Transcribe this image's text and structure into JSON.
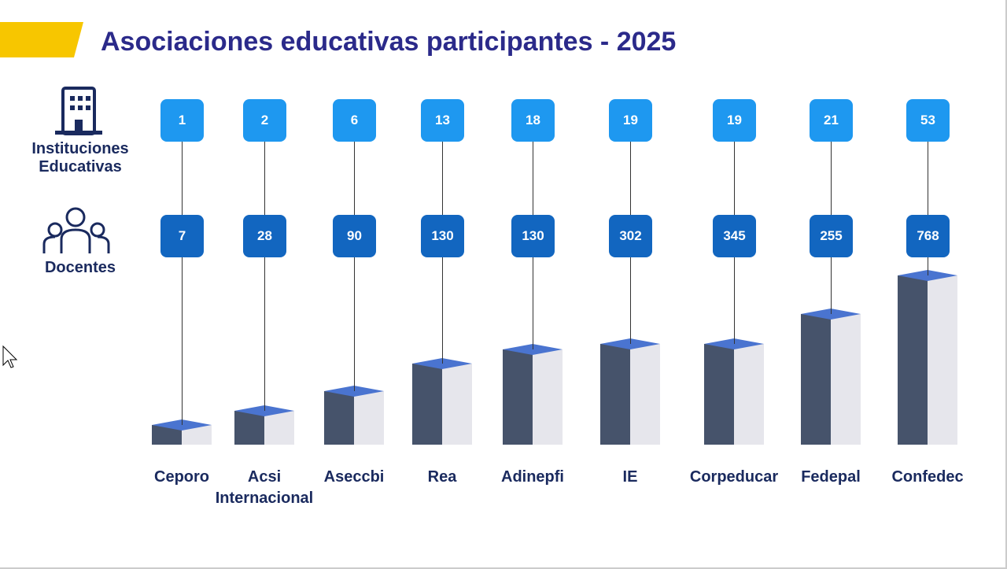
{
  "header": {
    "title": "Asociaciones educativas participantes - 2025"
  },
  "row_labels": {
    "instituciones": "Instituciones Educativas",
    "docentes": "Docentes"
  },
  "associations": [
    {
      "name": "Ceporo",
      "instituciones": 1,
      "docentes": 7
    },
    {
      "name": "Acsi Internacional",
      "instituciones": 2,
      "docentes": 28
    },
    {
      "name": "Aseccbi",
      "instituciones": 6,
      "docentes": 90
    },
    {
      "name": "Rea",
      "instituciones": 13,
      "docentes": 130
    },
    {
      "name": "Adinepfi",
      "instituciones": 18,
      "docentes": 130
    },
    {
      "name": "IE",
      "instituciones": 19,
      "docentes": 302
    },
    {
      "name": "Corpeducar",
      "instituciones": 19,
      "docentes": 345
    },
    {
      "name": "Fedepal",
      "instituciones": 21,
      "docentes": 255
    },
    {
      "name": "Confedec",
      "instituciones": 53,
      "docentes": 768
    }
  ]
}
